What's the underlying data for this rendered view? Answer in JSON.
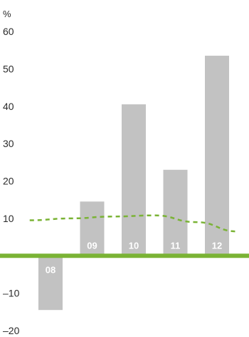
{
  "chart_data": {
    "type": "bar",
    "unit_label": "%",
    "ylim": [
      -20,
      60
    ],
    "y_ticks": [
      "60",
      "50",
      "40",
      "30",
      "20",
      "10",
      "–10",
      "–20"
    ],
    "categories": [
      "08",
      "09",
      "10",
      "11",
      "12"
    ],
    "series": [
      {
        "type": "bar",
        "values": [
          -14.5,
          14.5,
          40.5,
          23,
          53.5
        ]
      },
      {
        "type": "line",
        "style": "dashed",
        "x": [
          -0.5,
          0.5,
          1.5,
          2.5,
          3.5,
          4.5
        ],
        "values": [
          9.5,
          10,
          10.5,
          10.8,
          9,
          6.5
        ]
      }
    ],
    "colors": {
      "bars": "#c2c2c2",
      "baseline": "#7ab335",
      "trend": "#7ab335",
      "bar_label": "#ffffff"
    },
    "grid": false
  }
}
